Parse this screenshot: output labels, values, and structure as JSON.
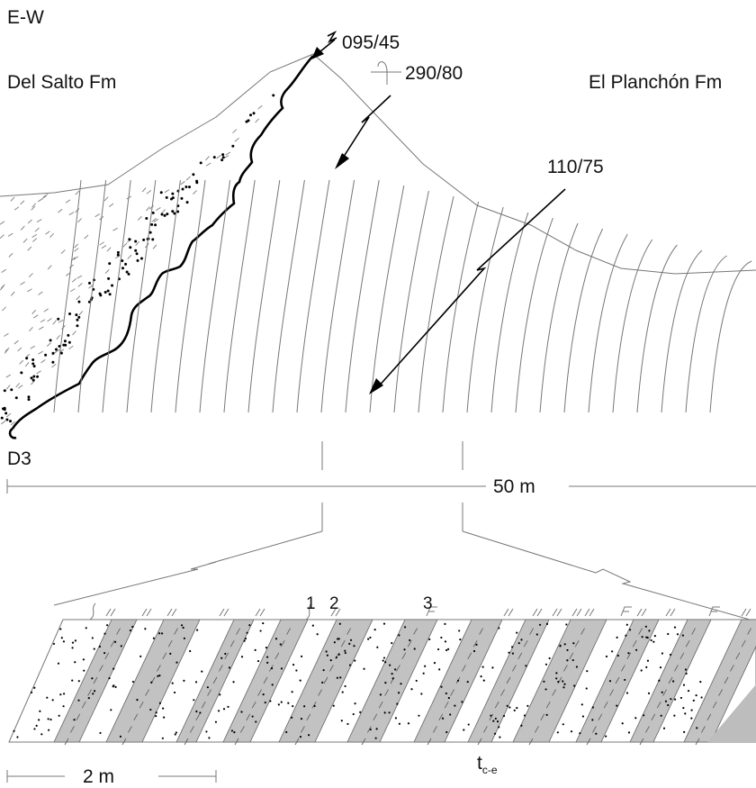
{
  "figure": {
    "section_label": "E-W",
    "formation_left": "Del Salto Fm",
    "formation_right": "El Planchón Fm",
    "deformation_label": "D3",
    "scale_large": "50 m",
    "scale_small": "2 m",
    "turbidite_label_main": "t",
    "turbidite_label_sub": "c-e"
  },
  "measurements": [
    {
      "id": "fault-top",
      "text": "095/45",
      "symbol": "fault-arrow-icon"
    },
    {
      "id": "bedding-overturned",
      "text": "290/80",
      "symbol": "overturned-bedding-icon"
    },
    {
      "id": "fault-right",
      "text": "110/75",
      "symbol": "fault-arrow-icon"
    }
  ],
  "structure_markers": [
    "1",
    "2",
    "3"
  ],
  "structure_symbols": {
    "marker_1": "convolute-lamination",
    "marker_2": "parallel-lamination",
    "marker_3": "flame-structure"
  }
}
